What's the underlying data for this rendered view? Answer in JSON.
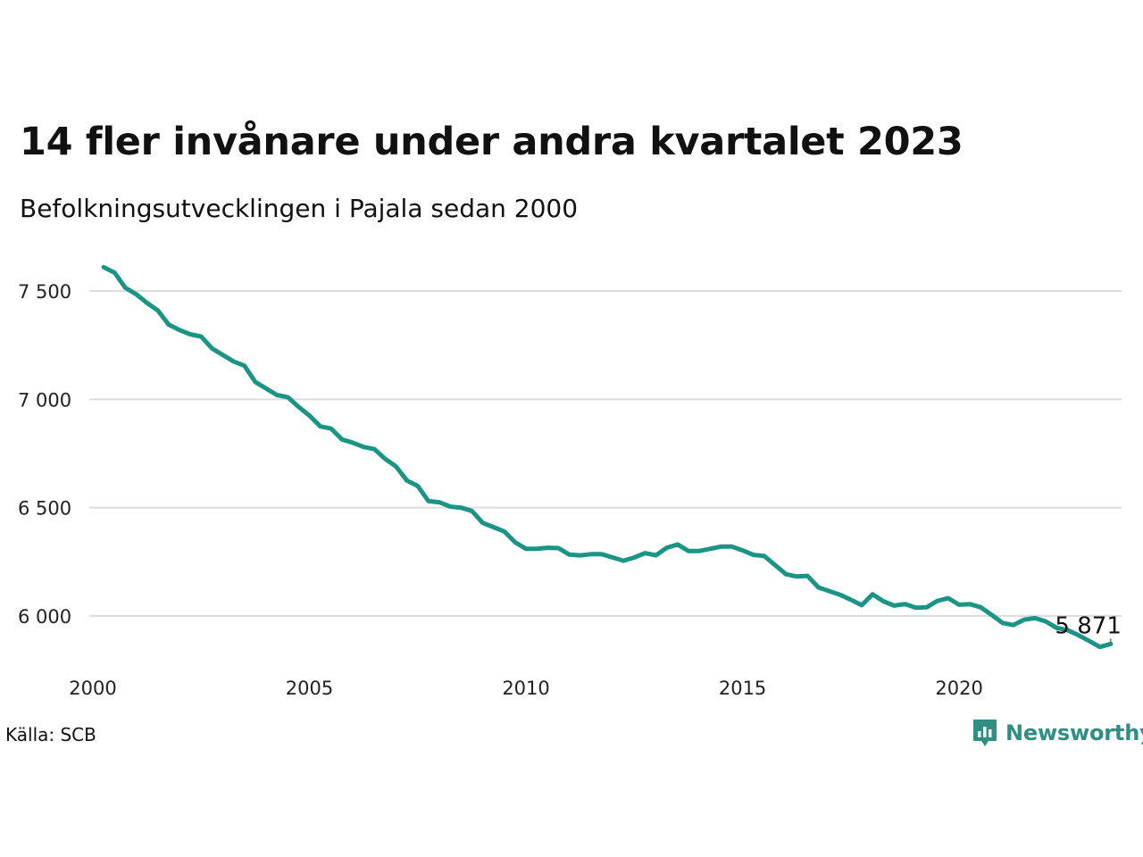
{
  "title": "14 fler invånare under andra kvartalet 2023",
  "subtitle": "Befolkningsutvecklingen i Pajala sedan 2000",
  "source": "Källa: SCB",
  "logo": {
    "text": "Newsworthy",
    "icon": "newsworthy-logo-icon",
    "color": "#2f8f83"
  },
  "chart_data": {
    "type": "line",
    "line_color": "#1a9484",
    "grid": "horizontal",
    "xlim": [
      2000,
      2023.75
    ],
    "ylim": [
      5800,
      7650
    ],
    "x_ticks": [
      2000,
      2005,
      2010,
      2015,
      2020
    ],
    "x_tick_labels": [
      "2000",
      "2005",
      "2010",
      "2015",
      "2020"
    ],
    "y_ticks": [
      6000,
      6500,
      7000,
      7500
    ],
    "y_tick_labels": [
      "6 000",
      "6 500",
      "7 000",
      "7 500"
    ],
    "end_label": "5 871",
    "series": [
      {
        "x": [
          2000.25,
          2000.5,
          2000.75,
          2001.0,
          2001.25,
          2001.5,
          2001.75,
          2002.0,
          2002.25,
          2002.5,
          2002.75,
          2003.0,
          2003.25,
          2003.5,
          2003.75,
          2004.0,
          2004.25,
          2004.5,
          2004.75,
          2005.0,
          2005.25,
          2005.5,
          2005.75,
          2006.0,
          2006.25,
          2006.5,
          2006.75,
          2007.0,
          2007.25,
          2007.5,
          2007.75,
          2008.0,
          2008.25,
          2008.5,
          2008.75,
          2009.0,
          2009.25,
          2009.5,
          2009.75,
          2010.0,
          2010.25,
          2010.5,
          2010.75,
          2011.0,
          2011.25,
          2011.5,
          2011.75,
          2012.0,
          2012.25,
          2012.5,
          2012.75,
          2013.0,
          2013.25,
          2013.5,
          2013.75,
          2014.0,
          2014.25,
          2014.5,
          2014.75,
          2015.0,
          2015.25,
          2015.5,
          2015.75,
          2016.0,
          2016.25,
          2016.5,
          2016.75,
          2017.0,
          2017.25,
          2017.5,
          2017.75,
          2018.0,
          2018.25,
          2018.5,
          2018.75,
          2019.0,
          2019.25,
          2019.5,
          2019.75,
          2020.0,
          2020.25,
          2020.5,
          2020.75,
          2021.0,
          2021.25,
          2021.5,
          2021.75,
          2022.0,
          2022.25,
          2022.5,
          2022.75,
          2023.0,
          2023.25,
          2023.5
        ],
        "y": [
          7610,
          7585,
          7515,
          7485,
          7445,
          7410,
          7345,
          7320,
          7300,
          7290,
          7235,
          7205,
          7175,
          7155,
          7080,
          7050,
          7020,
          7010,
          6965,
          6925,
          6875,
          6865,
          6815,
          6800,
          6780,
          6770,
          6725,
          6690,
          6625,
          6600,
          6530,
          6525,
          6505,
          6500,
          6485,
          6430,
          6410,
          6390,
          6340,
          6310,
          6310,
          6315,
          6313,
          6283,
          6280,
          6285,
          6285,
          6270,
          6255,
          6270,
          6290,
          6280,
          6315,
          6330,
          6300,
          6300,
          6310,
          6320,
          6320,
          6303,
          6282,
          6277,
          6235,
          6193,
          6182,
          6185,
          6132,
          6115,
          6098,
          6075,
          6050,
          6100,
          6068,
          6048,
          6055,
          6038,
          6040,
          6070,
          6082,
          6052,
          6055,
          6040,
          6005,
          5968,
          5958,
          5983,
          5990,
          5975,
          5945,
          5935,
          5912,
          5885,
          5857,
          5871
        ]
      }
    ]
  }
}
